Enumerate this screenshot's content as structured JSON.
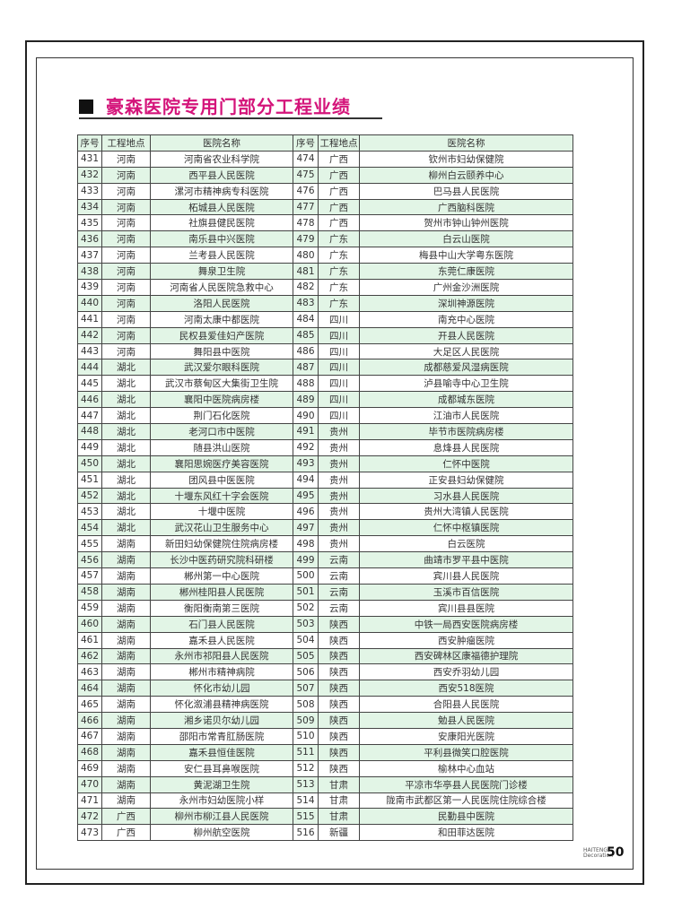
{
  "title": "豪森医院专用门部分工程业绩",
  "headers": [
    "序号",
    "工程地点",
    "医院名称",
    "序号",
    "工程地点",
    "医院名称"
  ],
  "rows": [
    [
      [
        "431",
        "河南",
        "河南省农业科学院"
      ],
      [
        "474",
        "广西",
        "钦州市妇幼保健院"
      ]
    ],
    [
      [
        "432",
        "河南",
        "西平县人民医院"
      ],
      [
        "475",
        "广西",
        "柳州白云颐养中心"
      ]
    ],
    [
      [
        "433",
        "河南",
        "漯河市精神病专科医院"
      ],
      [
        "476",
        "广西",
        "巴马县人民医院"
      ]
    ],
    [
      [
        "434",
        "河南",
        "柘城县人民医院"
      ],
      [
        "477",
        "广西",
        "广西脑科医院"
      ]
    ],
    [
      [
        "435",
        "河南",
        "社旗县健民医院"
      ],
      [
        "478",
        "广西",
        "贺州市钟山钟州医院"
      ]
    ],
    [
      [
        "436",
        "河南",
        "南乐县中兴医院"
      ],
      [
        "479",
        "广东",
        "白云山医院"
      ]
    ],
    [
      [
        "437",
        "河南",
        "兰考县人民医院"
      ],
      [
        "480",
        "广东",
        "梅县中山大学粤东医院"
      ]
    ],
    [
      [
        "438",
        "河南",
        "舞泉卫生院"
      ],
      [
        "481",
        "广东",
        "东莞仁康医院"
      ]
    ],
    [
      [
        "439",
        "河南",
        "河南省人民医院急救中心"
      ],
      [
        "482",
        "广东",
        "广州金沙洲医院"
      ]
    ],
    [
      [
        "440",
        "河南",
        "洛阳人民医院"
      ],
      [
        "483",
        "广东",
        "深圳神源医院"
      ]
    ],
    [
      [
        "441",
        "河南",
        "河南太康中都医院"
      ],
      [
        "484",
        "四川",
        "南充中心医院"
      ]
    ],
    [
      [
        "442",
        "河南",
        "民权县爱佳妇产医院"
      ],
      [
        "485",
        "四川",
        "开县人民医院"
      ]
    ],
    [
      [
        "443",
        "河南",
        "舞阳县中医院"
      ],
      [
        "486",
        "四川",
        "大足区人民医院"
      ]
    ],
    [
      [
        "444",
        "湖北",
        "武汉爱尔眼科医院"
      ],
      [
        "487",
        "四川",
        "成都慈爱风湿病医院"
      ]
    ],
    [
      [
        "445",
        "湖北",
        "武汉市蔡甸区大集街卫生院"
      ],
      [
        "488",
        "四川",
        "泸县喻寺中心卫生院"
      ]
    ],
    [
      [
        "446",
        "湖北",
        "襄阳中医院病房楼"
      ],
      [
        "489",
        "四川",
        "成都城东医院"
      ]
    ],
    [
      [
        "447",
        "湖北",
        "荆门石化医院"
      ],
      [
        "490",
        "四川",
        "江油市人民医院"
      ]
    ],
    [
      [
        "448",
        "湖北",
        "老河口市中医院"
      ],
      [
        "491",
        "贵州",
        "毕节市医院病房楼"
      ]
    ],
    [
      [
        "449",
        "湖北",
        "随县洪山医院"
      ],
      [
        "492",
        "贵州",
        "息烽县人民医院"
      ]
    ],
    [
      [
        "450",
        "湖北",
        "襄阳思婉医疗美容医院"
      ],
      [
        "493",
        "贵州",
        "仁怀中医院"
      ]
    ],
    [
      [
        "451",
        "湖北",
        "团风县中医医院"
      ],
      [
        "494",
        "贵州",
        "正安县妇幼保健院"
      ]
    ],
    [
      [
        "452",
        "湖北",
        "十堰东风红十字会医院"
      ],
      [
        "495",
        "贵州",
        "习水县人民医院"
      ]
    ],
    [
      [
        "453",
        "湖北",
        "十堰中医院"
      ],
      [
        "496",
        "贵州",
        "贵州大湾镇人民医院"
      ]
    ],
    [
      [
        "454",
        "湖北",
        "武汉花山卫生服务中心"
      ],
      [
        "497",
        "贵州",
        "仁怀中枢镇医院"
      ]
    ],
    [
      [
        "455",
        "湖南",
        "新田妇幼保健院住院病房楼"
      ],
      [
        "498",
        "贵州",
        "白云医院"
      ]
    ],
    [
      [
        "456",
        "湖南",
        "长沙中医药研究院科研楼"
      ],
      [
        "499",
        "云南",
        "曲靖市罗平县中医院"
      ]
    ],
    [
      [
        "457",
        "湖南",
        "郴州第一中心医院"
      ],
      [
        "500",
        "云南",
        "宾川县人民医院"
      ]
    ],
    [
      [
        "458",
        "湖南",
        "郴州桂阳县人民医院"
      ],
      [
        "501",
        "云南",
        "玉溪市百信医院"
      ]
    ],
    [
      [
        "459",
        "湖南",
        "衡阳衡南第三医院"
      ],
      [
        "502",
        "云南",
        "宾川县县医院"
      ]
    ],
    [
      [
        "460",
        "湖南",
        "石门县人民医院"
      ],
      [
        "503",
        "陕西",
        "中铁一局西安医院病房楼"
      ]
    ],
    [
      [
        "461",
        "湖南",
        "嘉禾县人民医院"
      ],
      [
        "504",
        "陕西",
        "西安肿瘤医院"
      ]
    ],
    [
      [
        "462",
        "湖南",
        "永州市祁阳县人民医院"
      ],
      [
        "505",
        "陕西",
        "西安碑林区康福德护理院"
      ]
    ],
    [
      [
        "463",
        "湖南",
        "郴州市精神病院"
      ],
      [
        "506",
        "陕西",
        "西安乔羽幼儿园"
      ]
    ],
    [
      [
        "464",
        "湖南",
        "怀化市幼儿园"
      ],
      [
        "507",
        "陕西",
        "西安518医院"
      ]
    ],
    [
      [
        "465",
        "湖南",
        "怀化溆浦县精神病医院"
      ],
      [
        "508",
        "陕西",
        "合阳县人民医院"
      ]
    ],
    [
      [
        "466",
        "湖南",
        "湘乡诺贝尔幼儿园"
      ],
      [
        "509",
        "陕西",
        "勉县人民医院"
      ]
    ],
    [
      [
        "467",
        "湖南",
        "邵阳市常青肛肠医院"
      ],
      [
        "510",
        "陕西",
        "安康阳光医院"
      ]
    ],
    [
      [
        "468",
        "湖南",
        "嘉禾县恒佳医院"
      ],
      [
        "511",
        "陕西",
        "平利县微笑口腔医院"
      ]
    ],
    [
      [
        "469",
        "湖南",
        "安仁县耳鼻喉医院"
      ],
      [
        "512",
        "陕西",
        "榆林中心血站"
      ]
    ],
    [
      [
        "470",
        "湖南",
        "黄泥湖卫生院"
      ],
      [
        "513",
        "甘肃",
        "平凉市华亭县人民医院门诊楼"
      ]
    ],
    [
      [
        "471",
        "湖南",
        "永州市妇幼医院小样"
      ],
      [
        "514",
        "甘肃",
        "陇南市武都区第一人民医院住院综合楼"
      ]
    ],
    [
      [
        "472",
        "广西",
        "柳州市柳江县人民医院"
      ],
      [
        "515",
        "甘肃",
        "民勤县中医院"
      ]
    ],
    [
      [
        "473",
        "广西",
        "柳州航空医院"
      ],
      [
        "516",
        "新疆",
        "和田菲达医院"
      ]
    ]
  ],
  "footer": {
    "brand_line1": "HAITENG",
    "brand_line2": "Decoration",
    "page_number": "50"
  },
  "colors": {
    "title": "#d4147a",
    "row_alt": "#e2f5e6"
  }
}
